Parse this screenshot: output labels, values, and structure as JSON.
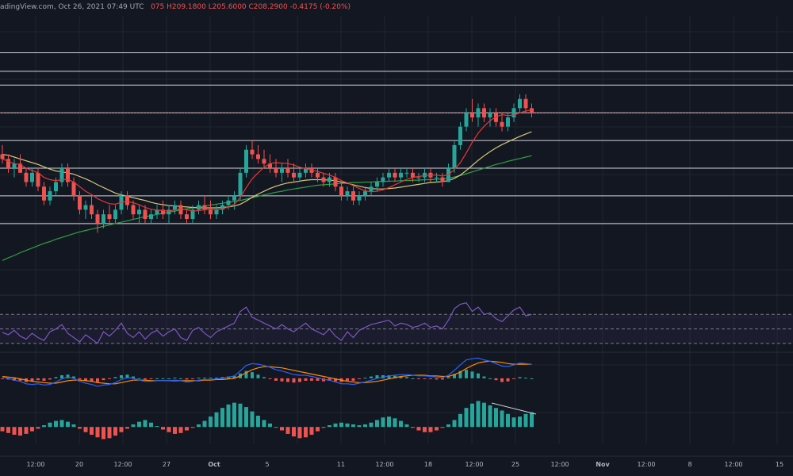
{
  "header": {
    "source_date": "adingView.com, Oct 26, 2021 07:49 UTC",
    "ohlc": "075  H209.1800  L205.6000  C208.2900  -0.4175 (-0.20%)"
  },
  "x_axis_labels": [
    "12:00",
    "20",
    "12:00",
    "27",
    "Oct",
    "5",
    "11",
    "12:00",
    "18",
    "12:00",
    "25",
    "12:00",
    "Nov",
    "12:00",
    "8",
    "12:00",
    "15"
  ],
  "colors": {
    "background": "#131722",
    "grid": "#1f2430",
    "level": "#d1d4dc",
    "candle_up": "#26a69a",
    "candle_down": "#ef5350",
    "sma_fast": "#e53935",
    "sma_mid": "#d6c77a",
    "sma_slow": "#2ea043",
    "rsi": "#7e57c2",
    "macd": "#2962ff",
    "signal": "#ff8c00",
    "axis_text": "#b2b5be"
  },
  "chart_data": {
    "type": "candlestick",
    "main": {
      "x_index_range": [
        0,
        120
      ],
      "horizontal_levels": [
        232,
        228,
        225,
        219,
        213,
        207,
        201,
        195
      ],
      "price_range": [
        185,
        240
      ],
      "candles": [
        [
          210,
          212,
          208,
          209
        ],
        [
          209,
          210,
          206,
          207
        ],
        [
          207,
          209,
          205,
          208
        ],
        [
          208,
          210,
          206,
          206
        ],
        [
          206,
          207,
          203,
          204
        ],
        [
          204,
          207,
          203,
          206
        ],
        [
          206,
          207,
          202,
          203
        ],
        [
          203,
          204,
          199,
          200
        ],
        [
          200,
          203,
          199,
          202
        ],
        [
          202,
          205,
          201,
          204
        ],
        [
          204,
          208,
          203,
          207
        ],
        [
          207,
          208,
          203,
          204
        ],
        [
          204,
          205,
          200,
          201
        ],
        [
          201,
          202,
          197,
          198
        ],
        [
          198,
          200,
          196,
          199
        ],
        [
          199,
          201,
          196,
          197
        ],
        [
          197,
          198,
          193,
          195
        ],
        [
          195,
          198,
          194,
          197
        ],
        [
          197,
          199,
          195,
          196
        ],
        [
          196,
          199,
          195,
          198
        ],
        [
          198,
          202,
          197,
          201
        ],
        [
          201,
          202,
          198,
          199
        ],
        [
          199,
          200,
          196,
          197
        ],
        [
          197,
          199,
          195,
          198
        ],
        [
          198,
          199,
          195,
          196
        ],
        [
          196,
          198,
          195,
          197
        ],
        [
          197,
          199,
          196,
          198
        ],
        [
          198,
          200,
          196,
          197
        ],
        [
          197,
          199,
          195,
          198
        ],
        [
          198,
          200,
          197,
          199
        ],
        [
          199,
          200,
          196,
          197
        ],
        [
          197,
          198,
          195,
          196
        ],
        [
          196,
          199,
          195,
          198
        ],
        [
          198,
          200,
          197,
          199
        ],
        [
          199,
          201,
          197,
          198
        ],
        [
          198,
          200,
          196,
          197
        ],
        [
          197,
          199,
          196,
          198
        ],
        [
          198,
          200,
          197,
          199
        ],
        [
          199,
          201,
          198,
          200
        ],
        [
          200,
          202,
          198,
          201
        ],
        [
          201,
          207,
          200,
          206
        ],
        [
          206,
          212,
          205,
          211
        ],
        [
          211,
          213,
          209,
          210
        ],
        [
          210,
          212,
          208,
          209
        ],
        [
          209,
          211,
          207,
          208
        ],
        [
          208,
          210,
          206,
          207
        ],
        [
          207,
          209,
          205,
          206
        ],
        [
          206,
          208,
          204,
          207
        ],
        [
          207,
          209,
          205,
          206
        ],
        [
          206,
          208,
          204,
          205
        ],
        [
          205,
          207,
          204,
          206
        ],
        [
          206,
          208,
          205,
          207
        ],
        [
          207,
          208,
          205,
          206
        ],
        [
          206,
          207,
          204,
          205
        ],
        [
          205,
          206,
          203,
          204
        ],
        [
          204,
          206,
          203,
          205
        ],
        [
          205,
          206,
          202,
          203
        ],
        [
          203,
          204,
          200,
          201
        ],
        [
          201,
          203,
          200,
          202
        ],
        [
          202,
          203,
          199,
          200
        ],
        [
          200,
          202,
          199,
          201
        ],
        [
          201,
          203,
          200,
          202
        ],
        [
          202,
          204,
          201,
          203
        ],
        [
          203,
          205,
          202,
          204
        ],
        [
          204,
          206,
          203,
          205
        ],
        [
          205,
          207,
          204,
          206
        ],
        [
          206,
          207,
          204,
          205
        ],
        [
          205,
          207,
          204,
          206
        ],
        [
          206,
          207,
          205,
          206
        ],
        [
          206,
          207,
          204,
          205
        ],
        [
          205,
          206,
          204,
          205
        ],
        [
          205,
          207,
          204,
          206
        ],
        [
          206,
          207,
          204,
          205
        ],
        [
          205,
          206,
          204,
          205
        ],
        [
          205,
          206,
          203,
          204
        ],
        [
          204,
          208,
          204,
          207
        ],
        [
          207,
          213,
          206,
          212
        ],
        [
          212,
          217,
          211,
          216
        ],
        [
          216,
          220,
          215,
          219
        ],
        [
          219,
          222,
          217,
          218
        ],
        [
          218,
          221,
          216,
          220
        ],
        [
          220,
          221,
          217,
          218
        ],
        [
          218,
          220,
          216,
          219
        ],
        [
          219,
          220,
          216,
          217
        ],
        [
          217,
          219,
          215,
          216
        ],
        [
          216,
          219,
          215,
          218
        ],
        [
          218,
          221,
          217,
          220
        ],
        [
          220,
          223,
          219,
          222
        ],
        [
          222,
          223,
          219,
          220
        ],
        [
          220,
          221,
          218,
          219
        ]
      ],
      "sma_fast": [
        209,
        208.5,
        208,
        207.8,
        207,
        206.5,
        206,
        205,
        204.5,
        204.3,
        204.5,
        204.6,
        204,
        203,
        202,
        201.3,
        200.4,
        199.8,
        199.3,
        199.2,
        199.6,
        199.8,
        199.5,
        199.1,
        198.5,
        198.1,
        197.9,
        197.8,
        197.7,
        198,
        198.2,
        198,
        197.7,
        197.8,
        198,
        198.1,
        198,
        198.2,
        198.6,
        199.2,
        200.6,
        202.8,
        204.7,
        206,
        207.2,
        208,
        208.2,
        208.1,
        208,
        207.7,
        207.2,
        206.9,
        206.6,
        206.3,
        205.9,
        205.5,
        205,
        204.3,
        203.8,
        203.2,
        202.6,
        202.1,
        201.9,
        202,
        202.3,
        202.8,
        203.4,
        204,
        204.6,
        205,
        205.2,
        205.4,
        205.5,
        205.5,
        205.3,
        205.6,
        206.7,
        208.2,
        210.3,
        212.6,
        214.6,
        216.1,
        217.3,
        218.1,
        218.6,
        218.4,
        218.5,
        219,
        219.4,
        219.6
      ],
      "sma_mid": [
        210,
        209.8,
        209.4,
        209,
        208.6,
        208.2,
        207.8,
        207.3,
        206.8,
        206.4,
        206.2,
        206,
        205.7,
        205.2,
        204.7,
        204.1,
        203.4,
        202.8,
        202.2,
        201.6,
        201.2,
        200.9,
        200.6,
        200.3,
        200,
        199.6,
        199.3,
        199.1,
        198.9,
        198.8,
        198.7,
        198.6,
        198.5,
        198.4,
        198.4,
        198.4,
        198.4,
        198.5,
        198.6,
        198.8,
        199.2,
        199.9,
        200.7,
        201.4,
        202,
        202.6,
        203.1,
        203.5,
        203.8,
        204,
        204.2,
        204.4,
        204.5,
        204.5,
        204.5,
        204.4,
        204.3,
        204,
        203.7,
        203.4,
        203.1,
        202.8,
        202.6,
        202.5,
        202.5,
        202.6,
        202.7,
        202.9,
        203.1,
        203.3,
        203.5,
        203.7,
        203.9,
        204,
        204.1,
        204.3,
        204.8,
        205.5,
        206.5,
        207.6,
        208.7,
        209.7,
        210.6,
        211.4,
        212.1,
        212.7,
        213.3,
        213.9,
        214.4,
        214.9
      ],
      "sma_slow": [
        187,
        187.6,
        188.1,
        188.7,
        189.2,
        189.7,
        190.2,
        190.7,
        191.1,
        191.6,
        192,
        192.4,
        192.8,
        193.2,
        193.5,
        193.8,
        194.1,
        194.4,
        194.7,
        195,
        195.3,
        195.6,
        195.9,
        196.2,
        196.5,
        196.7,
        197,
        197.2,
        197.5,
        197.7,
        198,
        198.2,
        198.4,
        198.6,
        198.8,
        199,
        199.2,
        199.4,
        199.6,
        199.8,
        200,
        200.3,
        200.6,
        200.9,
        201.2,
        201.5,
        201.8,
        202,
        202.3,
        202.5,
        202.7,
        202.9,
        203.1,
        203.3,
        203.4,
        203.5,
        203.6,
        203.7,
        203.8,
        203.9,
        203.9,
        204,
        204,
        204.1,
        204.1,
        204.2,
        204.2,
        204.3,
        204.3,
        204.4,
        204.4,
        204.5,
        204.5,
        204.6,
        204.7,
        204.8,
        205.1,
        205.4,
        205.8,
        206.2,
        206.6,
        207,
        207.4,
        207.8,
        208.1,
        208.5,
        208.8,
        209.1,
        209.4,
        209.7
      ]
    },
    "rsi": {
      "bands": [
        70,
        50,
        30
      ],
      "range": [
        20,
        90
      ],
      "values": [
        45,
        42,
        48,
        40,
        36,
        44,
        38,
        34,
        46,
        50,
        56,
        44,
        38,
        32,
        42,
        36,
        30,
        46,
        40,
        48,
        58,
        44,
        38,
        46,
        36,
        44,
        48,
        40,
        46,
        50,
        38,
        34,
        48,
        52,
        44,
        38,
        46,
        50,
        54,
        58,
        74,
        80,
        66,
        62,
        58,
        54,
        50,
        56,
        50,
        46,
        52,
        58,
        50,
        46,
        42,
        50,
        40,
        34,
        46,
        38,
        48,
        52,
        56,
        58,
        60,
        62,
        54,
        58,
        56,
        52,
        54,
        58,
        52,
        54,
        50,
        62,
        78,
        84,
        86,
        74,
        80,
        70,
        72,
        64,
        60,
        68,
        76,
        80,
        68,
        70
      ]
    },
    "macd": {
      "range": [
        -3,
        4
      ],
      "macd": [
        0.2,
        0,
        -0.3,
        -0.5,
        -0.9,
        -1,
        -0.9,
        -1.1,
        -1,
        -0.6,
        -0.1,
        0.2,
        0,
        -0.5,
        -0.8,
        -1,
        -1.3,
        -1.1,
        -1,
        -0.7,
        -0.2,
        0.1,
        0,
        -0.3,
        -0.5,
        -0.5,
        -0.4,
        -0.4,
        -0.4,
        -0.3,
        -0.4,
        -0.6,
        -0.5,
        -0.3,
        -0.2,
        -0.2,
        -0.1,
        0,
        0.2,
        0.4,
        1.2,
        2.1,
        2.4,
        2.3,
        2.1,
        1.8,
        1.4,
        1.2,
        0.9,
        0.6,
        0.5,
        0.5,
        0.3,
        0.1,
        -0.2,
        -0.3,
        -0.6,
        -0.9,
        -0.9,
        -1,
        -0.8,
        -0.6,
        -0.3,
        0,
        0.2,
        0.4,
        0.5,
        0.6,
        0.6,
        0.5,
        0.4,
        0.4,
        0.3,
        0.2,
        0.1,
        0.5,
        1.3,
        2.2,
        3,
        3.2,
        3.3,
        3,
        2.8,
        2.4,
        2,
        1.9,
        2.2,
        2.5,
        2.4,
        2.3
      ],
      "signal": [
        0.3,
        0.2,
        0.1,
        -0.1,
        -0.3,
        -0.5,
        -0.6,
        -0.7,
        -0.8,
        -0.8,
        -0.6,
        -0.4,
        -0.3,
        -0.3,
        -0.4,
        -0.5,
        -0.7,
        -0.8,
        -0.9,
        -0.9,
        -0.7,
        -0.5,
        -0.3,
        -0.3,
        -0.3,
        -0.4,
        -0.4,
        -0.4,
        -0.4,
        -0.4,
        -0.4,
        -0.4,
        -0.4,
        -0.4,
        -0.3,
        -0.3,
        -0.2,
        -0.2,
        -0.1,
        0,
        0.4,
        0.9,
        1.4,
        1.7,
        1.9,
        1.9,
        1.8,
        1.7,
        1.5,
        1.3,
        1.1,
        0.9,
        0.7,
        0.5,
        0.3,
        0.1,
        -0.1,
        -0.3,
        -0.5,
        -0.6,
        -0.7,
        -0.7,
        -0.6,
        -0.5,
        -0.3,
        -0.1,
        0.1,
        0.3,
        0.4,
        0.5,
        0.5,
        0.5,
        0.4,
        0.4,
        0.3,
        0.3,
        0.6,
        1,
        1.6,
        2.1,
        2.5,
        2.7,
        2.8,
        2.7,
        2.6,
        2.4,
        2.3,
        2.3,
        2.3,
        2.3
      ]
    },
    "histogram": {
      "range": [
        -4,
        7
      ],
      "values": [
        -1,
        -1.4,
        -1.8,
        -2,
        -1.6,
        -1,
        -0.4,
        0.4,
        1,
        1.4,
        1.6,
        1.2,
        0.6,
        -0.4,
        -1.2,
        -1.8,
        -2.4,
        -2.8,
        -2.6,
        -2,
        -1.2,
        -0.4,
        0.6,
        1.2,
        1.6,
        1,
        0.2,
        -0.6,
        -1.2,
        -1.6,
        -1.4,
        -0.8,
        -0.2,
        0.6,
        1.4,
        2.4,
        3.4,
        4.4,
        5.2,
        5.6,
        5.4,
        4.6,
        3.6,
        2.6,
        1.6,
        0.8,
        0,
        -0.8,
        -1.6,
        -2.2,
        -2.6,
        -2.4,
        -1.8,
        -1,
        -0.2,
        0.4,
        0.8,
        1,
        0.8,
        0.6,
        0.4,
        0.6,
        1,
        1.6,
        2.2,
        2.4,
        2,
        1.4,
        0.6,
        -0.2,
        -0.8,
        -1.2,
        -1.2,
        -0.8,
        -0.2,
        0.6,
        1.6,
        3,
        4.4,
        5.4,
        6,
        5.6,
        5,
        4.4,
        3.8,
        3,
        2.2,
        2.4,
        3,
        3.4
      ]
    }
  }
}
